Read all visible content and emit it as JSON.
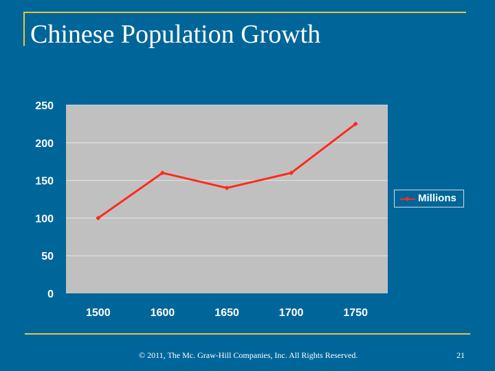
{
  "slide": {
    "title": "Chinese Population Growth",
    "footer": "© 2011, The Mc. Graw-Hill Companies, Inc. All Rights Reserved.",
    "page_number": "21"
  },
  "colors": {
    "background": "#006699",
    "accent_rule": "#e8c44a",
    "plot_area": "#c0c0c0",
    "series_line": "#ff2a1a",
    "text": "#ffffff"
  },
  "chart_data": {
    "type": "line",
    "title": "",
    "xlabel": "",
    "ylabel": "",
    "categories": [
      "1500",
      "1600",
      "1650",
      "1700",
      "1750"
    ],
    "series": [
      {
        "name": "Millions",
        "values": [
          100,
          160,
          140,
          160,
          225
        ]
      }
    ],
    "ylim": [
      0,
      250
    ],
    "yticks": [
      0,
      50,
      100,
      150,
      200,
      250
    ],
    "grid": true,
    "legend": "right"
  }
}
